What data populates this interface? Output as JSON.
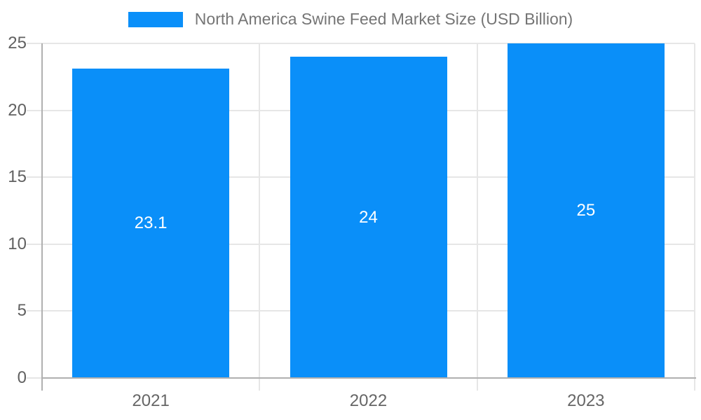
{
  "chart_data": {
    "type": "bar",
    "title": "North America Swine Feed Market Size (USD Billion)",
    "categories": [
      "2021",
      "2022",
      "2023"
    ],
    "values": [
      23.1,
      24,
      25
    ],
    "value_labels": [
      "23.1",
      "24",
      "25"
    ],
    "xlabel": "",
    "ylabel": "",
    "ylim": [
      0,
      25
    ],
    "yticks": [
      0,
      5,
      10,
      15,
      20,
      25
    ],
    "grid": "horizontal-and-category-separators",
    "legend_position": "top-center",
    "value_label_position": "middle-of-bar",
    "colors": {
      "bar": "#0A8FF9",
      "title_text": "#757575",
      "ytick_text": "#616161",
      "xtick_text": "#666666",
      "gridline": "#e6e6e6",
      "axis_line": "#b0b0b0",
      "value_label_text": "#ffffff",
      "background": "#ffffff"
    }
  }
}
